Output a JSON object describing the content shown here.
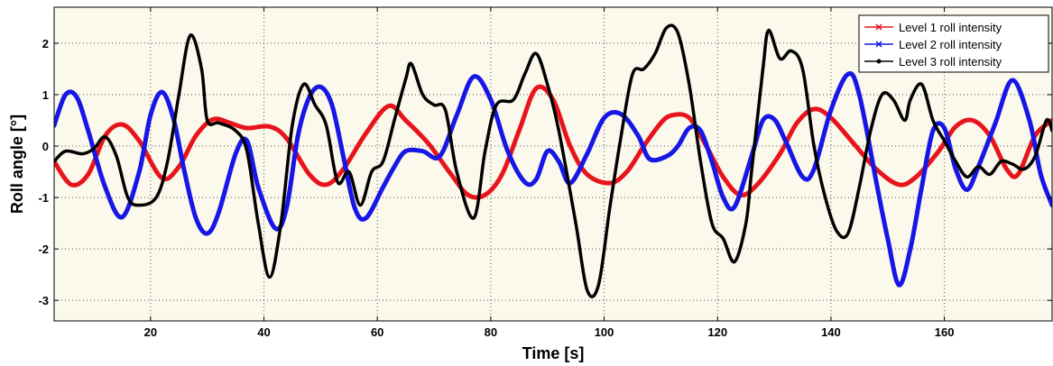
{
  "chart_data": {
    "type": "line",
    "title": "",
    "xlabel": "Time [s]",
    "ylabel": "Roll angle [°]",
    "xlim": [
      3,
      179
    ],
    "ylim": [
      -3.4,
      2.7
    ],
    "xticks": [
      20,
      40,
      60,
      80,
      100,
      120,
      140,
      160
    ],
    "yticks": [
      -3,
      -2,
      -1,
      0,
      1,
      2
    ],
    "grid": true,
    "legend_position": "top-right",
    "colors": {
      "background": "#fbf8ec",
      "grid": "#555555"
    },
    "series": [
      {
        "name": "Level 1 roll intensity",
        "color": "#e8141c",
        "marker": "x",
        "points": [
          [
            3,
            -0.3
          ],
          [
            6,
            -0.75
          ],
          [
            9,
            -0.55
          ],
          [
            12,
            0.2
          ],
          [
            15,
            0.42
          ],
          [
            18,
            0.1
          ],
          [
            22,
            -0.62
          ],
          [
            25,
            -0.4
          ],
          [
            28,
            0.2
          ],
          [
            31,
            0.52
          ],
          [
            34,
            0.45
          ],
          [
            37,
            0.35
          ],
          [
            41,
            0.38
          ],
          [
            44,
            0.15
          ],
          [
            48,
            -0.55
          ],
          [
            51,
            -0.75
          ],
          [
            54,
            -0.45
          ],
          [
            58,
            0.25
          ],
          [
            62,
            0.78
          ],
          [
            65,
            0.5
          ],
          [
            69,
            0.05
          ],
          [
            73,
            -0.55
          ],
          [
            76,
            -0.95
          ],
          [
            79,
            -0.95
          ],
          [
            82,
            -0.55
          ],
          [
            85,
            0.3
          ],
          [
            88,
            1.12
          ],
          [
            91,
            0.9
          ],
          [
            94,
            0.0
          ],
          [
            97,
            -0.55
          ],
          [
            101,
            -0.72
          ],
          [
            104,
            -0.5
          ],
          [
            107,
            0.0
          ],
          [
            110,
            0.45
          ],
          [
            112,
            0.6
          ],
          [
            115,
            0.55
          ],
          [
            118,
            0.0
          ],
          [
            121,
            -0.6
          ],
          [
            124,
            -0.95
          ],
          [
            127,
            -0.75
          ],
          [
            131,
            -0.15
          ],
          [
            134,
            0.45
          ],
          [
            137,
            0.72
          ],
          [
            140,
            0.55
          ],
          [
            144,
            0.05
          ],
          [
            148,
            -0.45
          ],
          [
            152,
            -0.75
          ],
          [
            155,
            -0.6
          ],
          [
            159,
            -0.1
          ],
          [
            162,
            0.38
          ],
          [
            165,
            0.5
          ],
          [
            168,
            0.2
          ],
          [
            171,
            -0.45
          ],
          [
            173,
            -0.55
          ],
          [
            176,
            0.2
          ],
          [
            179,
            0.5
          ]
        ]
      },
      {
        "name": "Level 2 roll intensity",
        "color": "#1616e6",
        "marker": "x",
        "points": [
          [
            3,
            0.4
          ],
          [
            5,
            1.0
          ],
          [
            7,
            0.95
          ],
          [
            9,
            0.3
          ],
          [
            12,
            -0.8
          ],
          [
            15,
            -1.38
          ],
          [
            18,
            -0.5
          ],
          [
            20,
            0.6
          ],
          [
            22,
            1.05
          ],
          [
            24,
            0.55
          ],
          [
            26,
            -0.5
          ],
          [
            28,
            -1.4
          ],
          [
            30,
            -1.7
          ],
          [
            32,
            -1.3
          ],
          [
            35,
            -0.15
          ],
          [
            37,
            0.1
          ],
          [
            39,
            -0.8
          ],
          [
            42,
            -1.6
          ],
          [
            44,
            -1.2
          ],
          [
            46,
            0.2
          ],
          [
            48,
            0.95
          ],
          [
            50,
            1.15
          ],
          [
            52,
            0.8
          ],
          [
            54,
            -0.2
          ],
          [
            56,
            -1.2
          ],
          [
            58,
            -1.4
          ],
          [
            61,
            -0.8
          ],
          [
            63,
            -0.4
          ],
          [
            65,
            -0.1
          ],
          [
            68,
            -0.1
          ],
          [
            71,
            -0.2
          ],
          [
            74,
            0.6
          ],
          [
            77,
            1.35
          ],
          [
            80,
            0.9
          ],
          [
            83,
            -0.1
          ],
          [
            86,
            -0.7
          ],
          [
            88,
            -0.65
          ],
          [
            90,
            -0.1
          ],
          [
            92,
            -0.3
          ],
          [
            94,
            -0.72
          ],
          [
            97,
            -0.15
          ],
          [
            100,
            0.55
          ],
          [
            103,
            0.62
          ],
          [
            106,
            0.2
          ],
          [
            108,
            -0.25
          ],
          [
            111,
            -0.2
          ],
          [
            113,
            0.0
          ],
          [
            115,
            0.35
          ],
          [
            117,
            0.3
          ],
          [
            119,
            -0.3
          ],
          [
            121,
            -1.0
          ],
          [
            123,
            -1.18
          ],
          [
            126,
            -0.2
          ],
          [
            128,
            0.5
          ],
          [
            130,
            0.52
          ],
          [
            132,
            0.1
          ],
          [
            135,
            -0.6
          ],
          [
            137,
            -0.45
          ],
          [
            140,
            0.7
          ],
          [
            143,
            1.4
          ],
          [
            145,
            1.0
          ],
          [
            148,
            -0.7
          ],
          [
            150,
            -1.8
          ],
          [
            152,
            -2.7
          ],
          [
            154,
            -2.0
          ],
          [
            156,
            -0.8
          ],
          [
            158,
            0.3
          ],
          [
            160,
            0.35
          ],
          [
            162,
            -0.45
          ],
          [
            164,
            -0.85
          ],
          [
            166,
            -0.4
          ],
          [
            169,
            0.45
          ],
          [
            172,
            1.28
          ],
          [
            175,
            0.5
          ],
          [
            177,
            -0.55
          ],
          [
            179,
            -1.15
          ]
        ]
      },
      {
        "name": "Level 3 roll intensity",
        "color": "#000000",
        "marker": "dot",
        "points": [
          [
            3,
            -0.3
          ],
          [
            5,
            -0.1
          ],
          [
            8,
            -0.15
          ],
          [
            10,
            -0.05
          ],
          [
            12,
            0.18
          ],
          [
            14,
            -0.2
          ],
          [
            16,
            -1.0
          ],
          [
            18,
            -1.15
          ],
          [
            21,
            -1.0
          ],
          [
            23,
            -0.3
          ],
          [
            25,
            1.0
          ],
          [
            27,
            2.15
          ],
          [
            29,
            1.5
          ],
          [
            30,
            0.5
          ],
          [
            32,
            0.45
          ],
          [
            35,
            0.3
          ],
          [
            37,
            -0.1
          ],
          [
            39,
            -1.5
          ],
          [
            41,
            -2.55
          ],
          [
            43,
            -1.5
          ],
          [
            45,
            0.4
          ],
          [
            47,
            1.2
          ],
          [
            49,
            0.8
          ],
          [
            51,
            0.4
          ],
          [
            53,
            -0.7
          ],
          [
            55,
            -0.5
          ],
          [
            57,
            -1.15
          ],
          [
            59,
            -0.5
          ],
          [
            61,
            -0.3
          ],
          [
            63,
            0.5
          ],
          [
            65,
            1.3
          ],
          [
            66,
            1.6
          ],
          [
            68,
            1.0
          ],
          [
            70,
            0.8
          ],
          [
            72,
            0.7
          ],
          [
            74,
            -0.5
          ],
          [
            77,
            -1.4
          ],
          [
            79,
            -0.1
          ],
          [
            81,
            0.8
          ],
          [
            84,
            0.9
          ],
          [
            86,
            1.4
          ],
          [
            88,
            1.8
          ],
          [
            90,
            1.2
          ],
          [
            92,
            0.3
          ],
          [
            95,
            -1.5
          ],
          [
            97,
            -2.8
          ],
          [
            99,
            -2.7
          ],
          [
            101,
            -1.2
          ],
          [
            103,
            0.2
          ],
          [
            105,
            1.4
          ],
          [
            107,
            1.5
          ],
          [
            109,
            1.8
          ],
          [
            111,
            2.3
          ],
          [
            113,
            2.2
          ],
          [
            115,
            1.2
          ],
          [
            117,
            -0.3
          ],
          [
            119,
            -1.5
          ],
          [
            121,
            -1.8
          ],
          [
            123,
            -2.25
          ],
          [
            125,
            -1.5
          ],
          [
            126,
            -0.5
          ],
          [
            128,
            1.5
          ],
          [
            129,
            2.25
          ],
          [
            131,
            1.7
          ],
          [
            133,
            1.85
          ],
          [
            135,
            1.5
          ],
          [
            137,
            0.0
          ],
          [
            139,
            -1.0
          ],
          [
            141,
            -1.65
          ],
          [
            143,
            -1.7
          ],
          [
            145,
            -0.8
          ],
          [
            147,
            0.3
          ],
          [
            149,
            1.0
          ],
          [
            151,
            0.9
          ],
          [
            153,
            0.5
          ],
          [
            154,
            0.9
          ],
          [
            156,
            1.2
          ],
          [
            158,
            0.5
          ],
          [
            160,
            0.1
          ],
          [
            162,
            -0.3
          ],
          [
            164,
            -0.6
          ],
          [
            166,
            -0.4
          ],
          [
            168,
            -0.55
          ],
          [
            170,
            -0.3
          ],
          [
            172,
            -0.35
          ],
          [
            174,
            -0.45
          ],
          [
            176,
            -0.2
          ],
          [
            178,
            0.5
          ],
          [
            179,
            0.3
          ]
        ]
      }
    ]
  }
}
